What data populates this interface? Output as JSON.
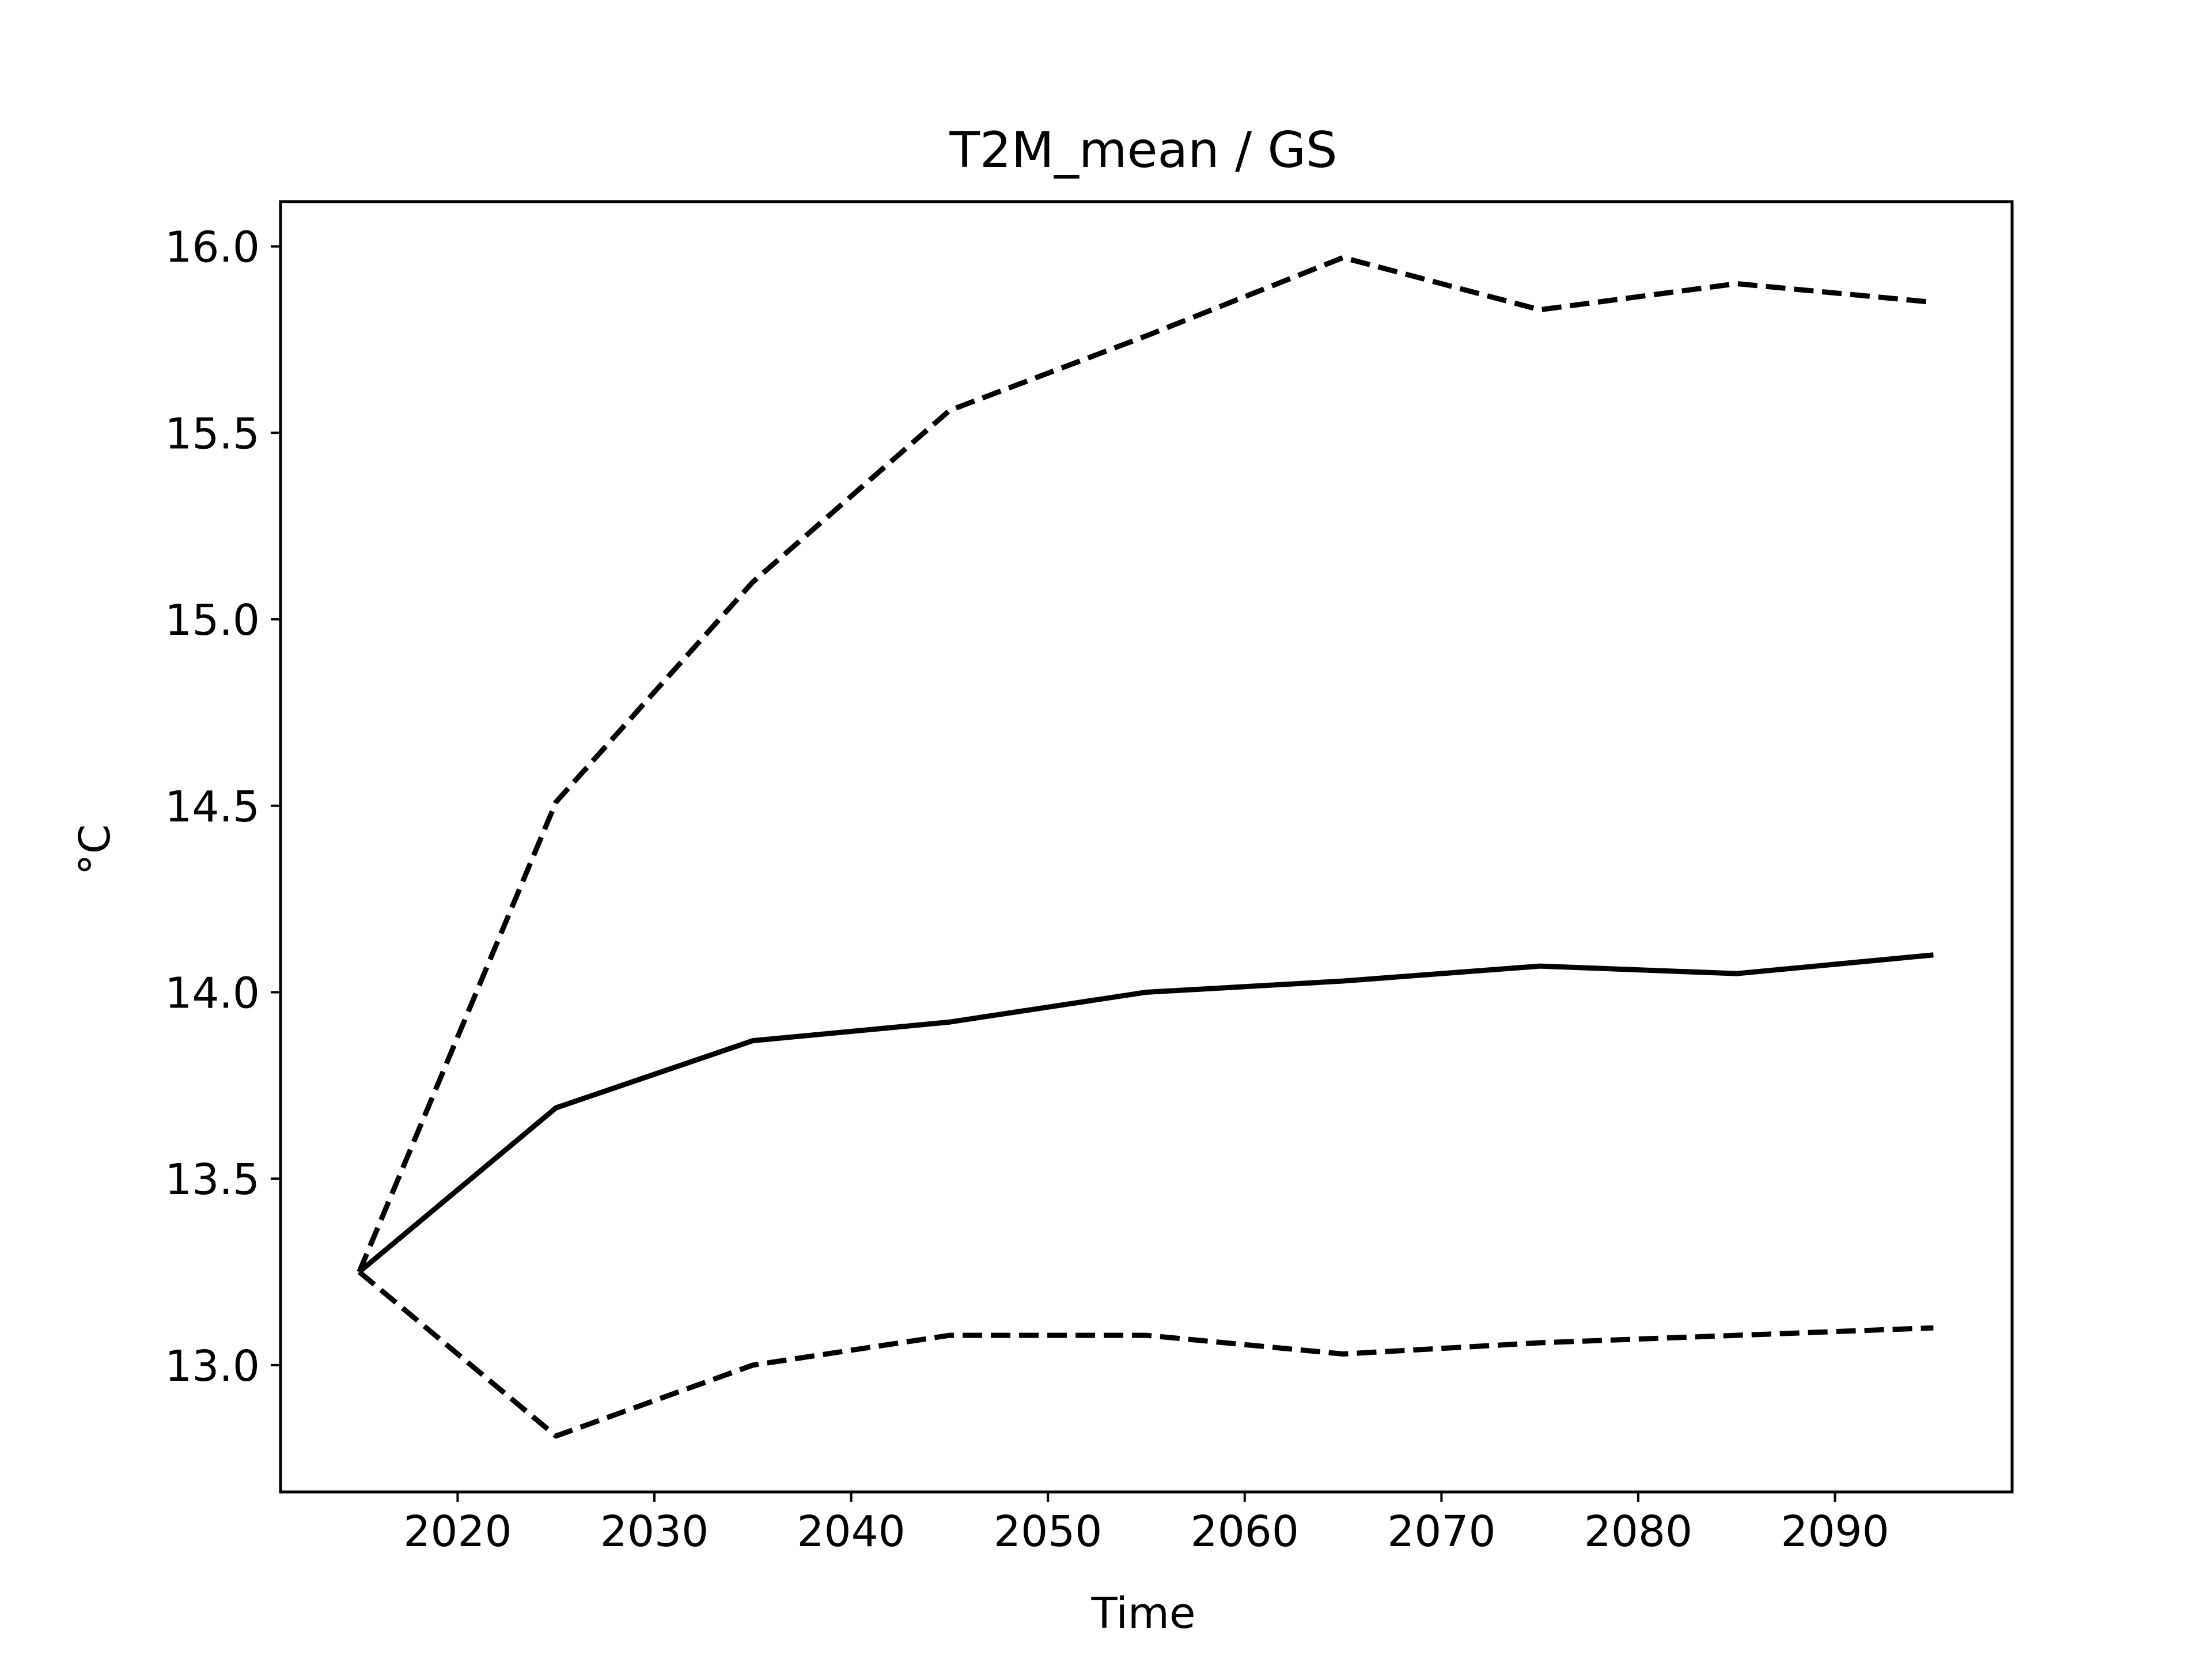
{
  "chart_data": {
    "type": "line",
    "title": "T2M_mean / GS",
    "xlabel": "Time",
    "ylabel": "°C",
    "xlim": [
      2011,
      2099
    ],
    "ylim": [
      12.66,
      16.12
    ],
    "xticks": [
      2020,
      2030,
      2040,
      2050,
      2060,
      2070,
      2080,
      2090
    ],
    "yticks": [
      13.0,
      13.5,
      14.0,
      14.5,
      15.0,
      15.5,
      16.0
    ],
    "ytick_labels": [
      "13.0",
      "13.5",
      "14.0",
      "14.5",
      "15.0",
      "15.5",
      "16.0"
    ],
    "grid": false,
    "legend": false,
    "colors": {
      "line": "#000000",
      "axes": "#000000",
      "background": "#ffffff"
    },
    "x": [
      2015,
      2025,
      2035,
      2045,
      2055,
      2065,
      2075,
      2085,
      2095
    ],
    "series": [
      {
        "style": "dashed",
        "values": [
          13.25,
          14.51,
          15.1,
          15.56,
          15.76,
          15.97,
          15.83,
          15.9,
          15.85
        ]
      },
      {
        "style": "solid",
        "values": [
          13.25,
          13.69,
          13.87,
          13.92,
          14.0,
          14.03,
          14.07,
          14.05,
          14.1
        ]
      },
      {
        "style": "dashed",
        "values": [
          13.25,
          12.81,
          13.0,
          13.08,
          13.08,
          13.03,
          13.06,
          13.08,
          13.1
        ]
      }
    ]
  }
}
